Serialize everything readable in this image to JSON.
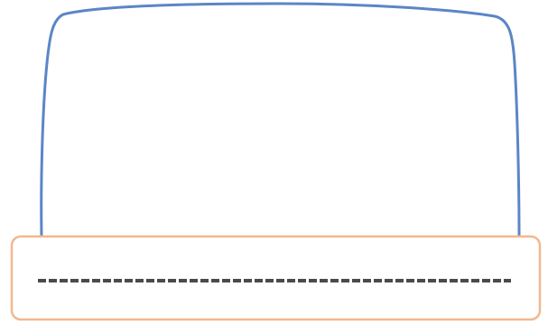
{
  "shapes": {
    "upper_frame": {
      "stroke_color": "#5b86c6",
      "fill_color": "#ffffff"
    },
    "lower_bar": {
      "stroke_color": "#f2b88e",
      "fill_color": "#ffffff"
    },
    "dashed_line": {
      "stroke_color": "#4a4a4a"
    }
  }
}
